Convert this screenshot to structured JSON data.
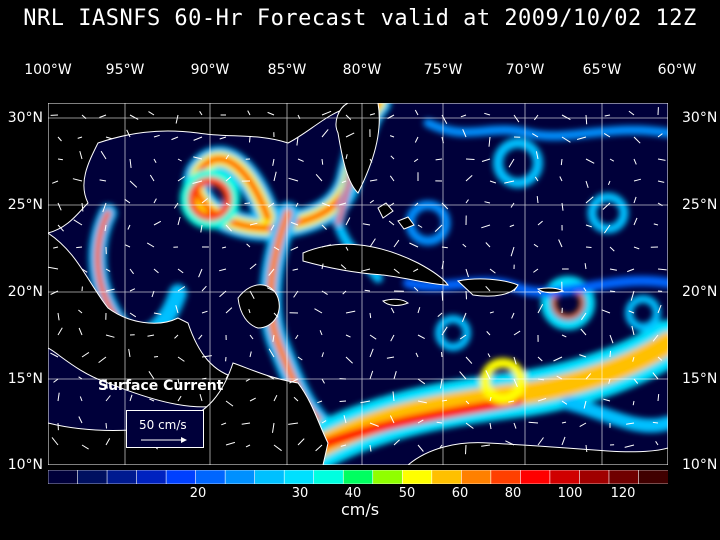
{
  "title": "NRL IASNFS  60-Hr Forecast valid at 2009/10/02 12Z",
  "lon_labels": [
    "100°W",
    "95°W",
    "90°W",
    "85°W",
    "80°W",
    "75°W",
    "70°W",
    "65°W",
    "60°W"
  ],
  "lat_labels": [
    "30°N",
    "25°N",
    "20°N",
    "15°N",
    "10°N"
  ],
  "legend": {
    "title": "Surface Current",
    "scale_label": "50 cm/s"
  },
  "colorbar": {
    "labels": [
      "20",
      "30",
      "40",
      "50",
      "60",
      "80",
      "100",
      "120"
    ],
    "units": "cm/s",
    "colors": [
      "#00003a",
      "#001060",
      "#001a90",
      "#0022c0",
      "#0040ff",
      "#0066ff",
      "#0090ff",
      "#00c0ff",
      "#00e0ff",
      "#00ffe0",
      "#00ff60",
      "#90ff00",
      "#ffff00",
      "#ffc000",
      "#ff8000",
      "#ff4000",
      "#ff0000",
      "#d00000",
      "#a00000",
      "#700000",
      "#400000"
    ]
  },
  "map": {
    "ocean_color": "#00003a",
    "land_color": "#000000",
    "extent": {
      "lon": [
        -100,
        -60
      ],
      "lat": [
        10,
        30
      ]
    }
  }
}
